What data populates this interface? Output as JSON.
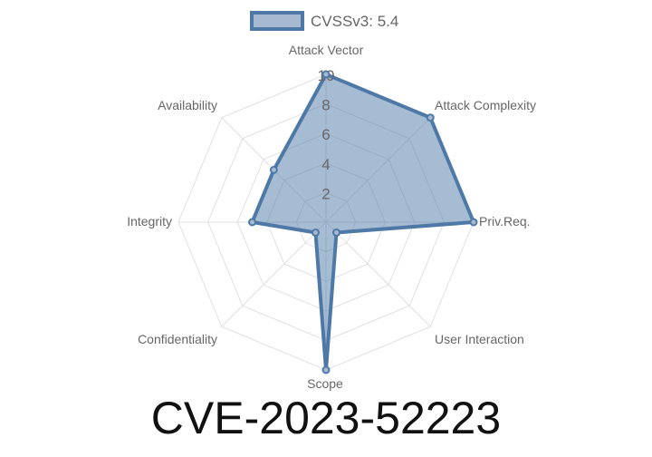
{
  "chart_data": {
    "type": "radar",
    "axes": [
      "Attack Vector",
      "Attack Complexity",
      "Priv.Req.",
      "User Interaction",
      "Scope",
      "Confidentiality",
      "Integrity",
      "Availability"
    ],
    "series": [
      {
        "name": "CVSSv3: 5.4",
        "values": [
          10,
          10,
          10,
          1,
          10,
          1,
          5,
          5
        ]
      }
    ],
    "rlim": [
      0,
      10
    ],
    "ticks": [
      "2",
      "4",
      "6",
      "8",
      "10"
    ],
    "grid": true,
    "legend": "top",
    "colors": {
      "stroke": "#4e79a7",
      "fill": "#4e79a780",
      "grid": "#e0e0e0"
    }
  },
  "footer": {
    "title": "CVE-2023-52223"
  }
}
